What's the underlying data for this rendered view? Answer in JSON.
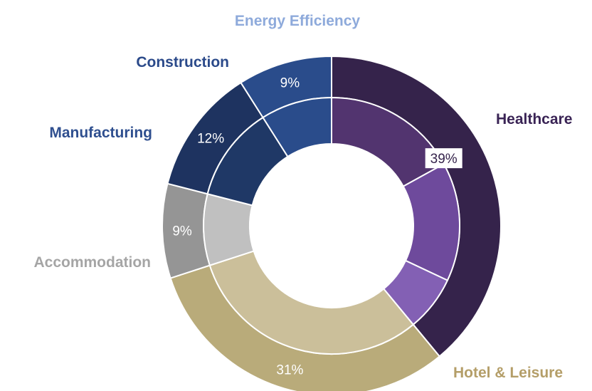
{
  "chart_data": {
    "type": "pie",
    "title": "",
    "outer_ring": [
      {
        "name": "Healthcare",
        "value": 39,
        "label": "39%",
        "color": "#35234b",
        "label_color": "#3a2455",
        "value_color": "#35234b"
      },
      {
        "name": "Hotel & Leisure",
        "value": 31,
        "label": "31%",
        "color": "#b9ab7a",
        "label_color": "#b49e68",
        "value_color": "#ffffff"
      },
      {
        "name": "Accommodation",
        "value": 9,
        "label": "9%",
        "color": "#959595",
        "label_color": "#a5a5a5",
        "value_color": "#ffffff"
      },
      {
        "name": "Manufacturing",
        "value": 12,
        "label": "12%",
        "color": "#1e3360",
        "label_color": "#2f4f8f",
        "value_color": "#ffffff"
      },
      {
        "name": "Construction",
        "value": 9,
        "label": "9%",
        "color": "#2a4c8b",
        "label_color": "#2b4a8a",
        "value_color": "#ffffff"
      }
    ],
    "extra_labels": [
      {
        "name": "Energy Efficiency",
        "label_color": "#8eaadb"
      }
    ],
    "inner_ring": [
      {
        "parent": "Healthcare",
        "value": 17,
        "color": "#52346f"
      },
      {
        "parent": "Healthcare",
        "value": 15,
        "color": "#6e4a9c"
      },
      {
        "parent": "Healthcare",
        "value": 7,
        "color": "#8360b4"
      },
      {
        "parent": "Hotel & Leisure",
        "value": 31,
        "color": "#cbbf9a"
      },
      {
        "parent": "Accommodation",
        "value": 9,
        "color": "#c0c0c0"
      },
      {
        "parent": "Manufacturing",
        "value": 12,
        "color": "#1f3866"
      },
      {
        "parent": "Construction",
        "value": 9,
        "color": "#2a4c8b"
      }
    ]
  }
}
